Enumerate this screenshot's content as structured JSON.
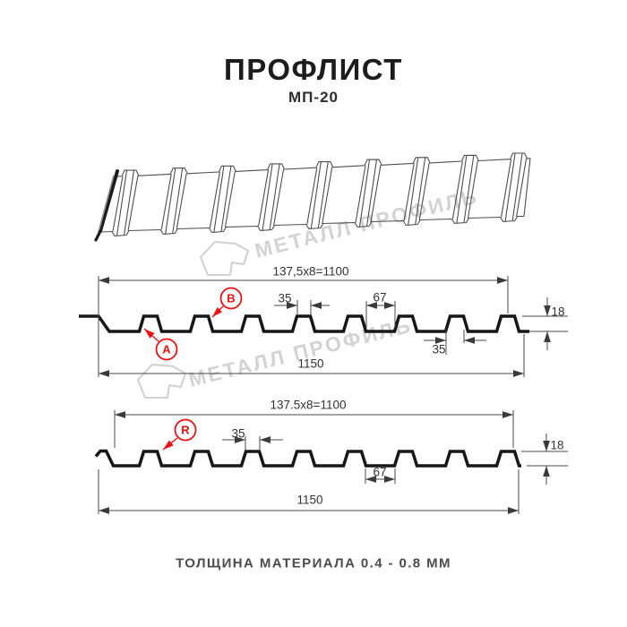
{
  "header": {
    "title": "ПРОФЛИСТ",
    "subtitle": "МП-20"
  },
  "watermark": {
    "text": "МЕТАЛЛ ПРОФИЛЬ",
    "color": "#d3d3d3"
  },
  "colors": {
    "accent_red": "#ee1111",
    "profile_line": "#171717",
    "dimension_line": "#4a4a4a",
    "drawing_line": "#4f4f4f"
  },
  "section1": {
    "pitch_dim": "137,5x8=1100",
    "rib_top_width": "35",
    "valley_width": "67",
    "profile_height": "18",
    "rib_bottom_width": "35",
    "total_width": "1150",
    "label_a": "A",
    "label_b": "B"
  },
  "section2": {
    "pitch_dim": "137.5x8=1100",
    "rib_top_width": "35",
    "valley_width": "67",
    "profile_height": "18",
    "total_width": "1150",
    "label_r": "R"
  },
  "footer": {
    "thickness_note": "ТОЛЩИНА МАТЕРИАЛА 0.4 - 0.8 ММ"
  }
}
